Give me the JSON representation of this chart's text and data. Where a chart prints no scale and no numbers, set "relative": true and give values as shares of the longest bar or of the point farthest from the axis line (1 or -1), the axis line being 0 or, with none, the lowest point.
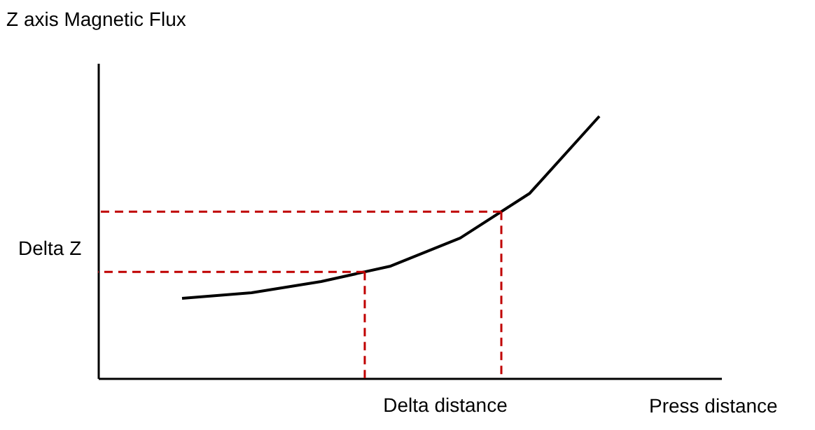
{
  "chart_data": {
    "type": "line",
    "relative": true,
    "xlabel": "Press distance",
    "ylabel": "Z axis Magnetic Flux",
    "categories": [
      null,
      null,
      null,
      null,
      null,
      null,
      null
    ],
    "series": [
      {
        "color": "#000000",
        "values": [
          0.305,
          0.326,
          0.369,
          0.428,
          0.535,
          0.706,
          1.0
        ]
      }
    ],
    "marker": "none",
    "line_style": "solid",
    "grid": false,
    "tick_labels": false,
    "ref_lines": [
      {
        "axis": "y",
        "value": 0.406,
        "color": "#c00000",
        "line_style": "dashed"
      },
      {
        "axis": "y",
        "value": 0.636,
        "color": "#c00000",
        "line_style": "dashed"
      }
    ],
    "annotations": [
      "Delta Z",
      "Delta distance"
    ]
  }
}
